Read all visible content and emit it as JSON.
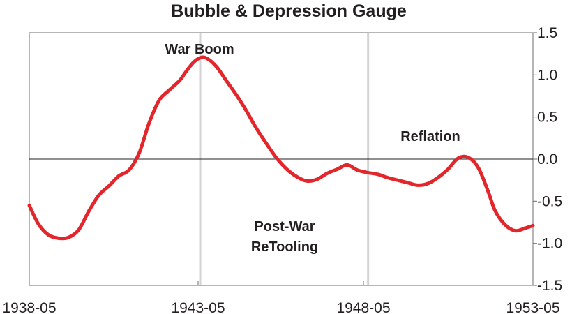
{
  "chart_data": {
    "type": "line",
    "title": "Bubble & Depression Gauge",
    "xlabel": "",
    "ylabel": "",
    "x_ticks": [
      "1938-05",
      "1943-05",
      "1948-05",
      "1953-05"
    ],
    "xlim": [
      1938.33,
      1953.33
    ],
    "ylim": [
      -1.5,
      1.5
    ],
    "y_ticks": [
      "1.5",
      "1.0",
      "0.5",
      "0.0",
      "-0.5",
      "-1.0",
      "-1.5"
    ],
    "y_tick_values": [
      1.5,
      1.0,
      0.5,
      0.0,
      -0.5,
      -1.0,
      -1.5
    ],
    "y_axis_position": "right",
    "grid": false,
    "reference_lines_x": [
      1943.42,
      1948.42
    ],
    "annotations": [
      {
        "text": "War Boom"
      },
      {
        "text": "Post-War"
      },
      {
        "text": "ReTooling"
      },
      {
        "text": "Reflation"
      }
    ],
    "series": [
      {
        "color": "#e3262b",
        "x": [
          1938.33,
          1938.6,
          1938.9,
          1939.2,
          1939.5,
          1939.8,
          1940.1,
          1940.4,
          1940.7,
          1941.0,
          1941.3,
          1941.6,
          1941.9,
          1942.2,
          1942.5,
          1942.8,
          1943.0,
          1943.2,
          1943.4,
          1943.6,
          1943.9,
          1944.2,
          1944.5,
          1944.8,
          1945.1,
          1945.4,
          1945.7,
          1946.0,
          1946.3,
          1946.6,
          1946.9,
          1947.2,
          1947.5,
          1947.8,
          1948.1,
          1948.4,
          1948.7,
          1949.0,
          1949.3,
          1949.6,
          1949.9,
          1950.2,
          1950.5,
          1950.8,
          1951.1,
          1951.4,
          1951.7,
          1952.0,
          1952.2,
          1952.5,
          1952.8,
          1953.1,
          1953.33
        ],
        "values": [
          -0.55,
          -0.77,
          -0.9,
          -0.94,
          -0.93,
          -0.84,
          -0.62,
          -0.43,
          -0.32,
          -0.2,
          -0.13,
          0.07,
          0.43,
          0.7,
          0.82,
          0.93,
          1.04,
          1.14,
          1.2,
          1.2,
          1.1,
          0.93,
          0.76,
          0.57,
          0.36,
          0.18,
          0.01,
          -0.12,
          -0.21,
          -0.26,
          -0.24,
          -0.17,
          -0.12,
          -0.07,
          -0.13,
          -0.16,
          -0.18,
          -0.22,
          -0.25,
          -0.28,
          -0.31,
          -0.29,
          -0.22,
          -0.12,
          0.01,
          0.02,
          -0.1,
          -0.39,
          -0.61,
          -0.78,
          -0.85,
          -0.82,
          -0.79
        ]
      }
    ]
  }
}
